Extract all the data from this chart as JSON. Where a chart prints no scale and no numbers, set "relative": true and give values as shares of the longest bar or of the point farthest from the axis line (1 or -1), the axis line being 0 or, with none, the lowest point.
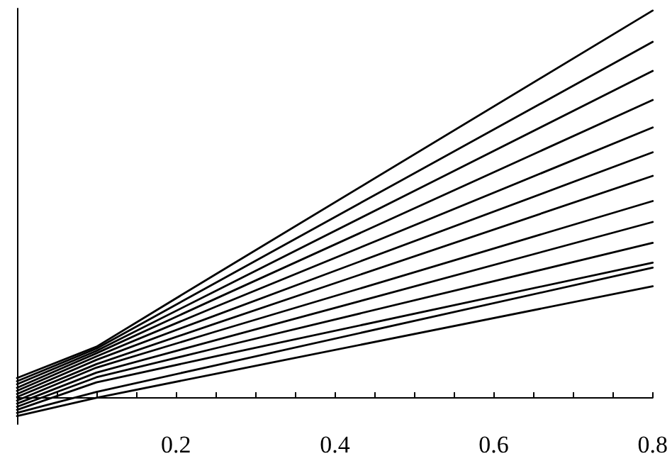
{
  "chart_data": {
    "type": "line",
    "relative": true,
    "x": [
      0,
      0.1,
      0.25,
      0.8
    ],
    "xlim": [
      0,
      0.8
    ],
    "xticks": [
      {
        "value": 0,
        "label": null
      },
      {
        "value": 0.05,
        "label": null
      },
      {
        "value": 0.1,
        "label": null
      },
      {
        "value": 0.15,
        "label": null
      },
      0.2,
      {
        "value": 0.25,
        "label": null
      },
      {
        "value": 0.3,
        "label": null
      },
      {
        "value": 0.35,
        "label": null
      },
      0.4,
      {
        "value": 0.45,
        "label": null
      },
      {
        "value": 0.5,
        "label": null
      },
      {
        "value": 0.55,
        "label": null
      },
      0.6,
      {
        "value": 0.65,
        "label": null
      },
      {
        "value": 0.7,
        "label": null
      },
      {
        "value": 0.75,
        "label": null
      },
      0.8
    ],
    "marker": "none",
    "line_style": "solid",
    "series": [
      {
        "color": "#000000",
        "values": [
          0.051,
          0.132,
          0.319,
          1
        ]
      },
      {
        "color": "#000000",
        "values": [
          0.043,
          0.127,
          0.297,
          0.919
        ]
      },
      {
        "color": "#000000",
        "values": [
          0.035,
          0.121,
          0.276,
          0.844
        ]
      },
      {
        "color": "#000000",
        "values": [
          0.026,
          0.115,
          0.256,
          0.769
        ]
      },
      {
        "color": "#000000",
        "values": [
          0.018,
          0.107,
          0.235,
          0.698
        ]
      },
      {
        "color": "#000000",
        "values": [
          0.01,
          0.098,
          0.213,
          0.634
        ]
      },
      {
        "color": "#000000",
        "values": [
          0.002,
          0.087,
          0.192,
          0.573
        ]
      },
      {
        "color": "#000000",
        "values": [
          -0.007,
          0.078,
          0.171,
          0.508
        ]
      },
      {
        "color": "#000000",
        "values": [
          -0.015,
          0.065,
          0.149,
          0.454
        ]
      },
      {
        "color": "#000000",
        "values": [
          -0.023,
          0.053,
          0.128,
          0.4
        ]
      },
      {
        "color": "#000000",
        "values": [
          -0.031,
          0.04,
          0.107,
          0.349
        ]
      },
      {
        "color": "#000000",
        "values": [
          -0.039,
          0.015,
          0.084,
          0.336
        ]
      },
      {
        "color": "#000000",
        "values": [
          -0.047,
          0.0,
          0.062,
          0.288
        ]
      }
    ]
  }
}
